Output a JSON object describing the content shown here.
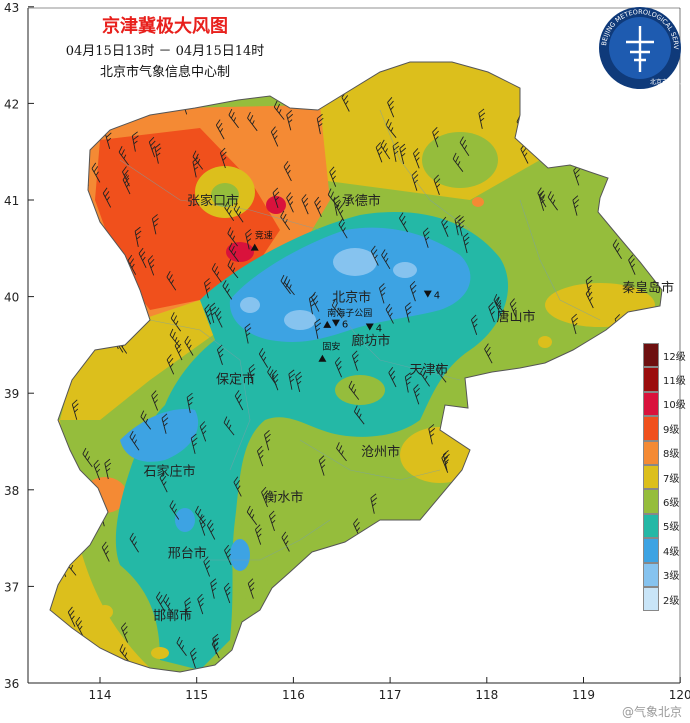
{
  "title": "京津冀极大风图",
  "time_range": "04月15日13时 － 04月15日14时",
  "producer": "北京市气象信息中心制",
  "logo": {
    "arc_text": "BEIJING METEOROLOGICAL SERVICE",
    "cn_text": "北京市气象局"
  },
  "axes": {
    "x_ticks": [
      "114",
      "115",
      "116",
      "117",
      "118",
      "119",
      "120"
    ],
    "y_ticks": [
      "43",
      "42",
      "41",
      "40",
      "39",
      "38",
      "37",
      "36"
    ]
  },
  "cities": [
    {
      "name": "承德市",
      "lon": 116.5,
      "lat": 40.95
    },
    {
      "name": "张家口市",
      "lon": 114.9,
      "lat": 40.95
    },
    {
      "name": "北京市",
      "lon": 116.4,
      "lat": 39.95
    },
    {
      "name": "秦皇岛市",
      "lon": 119.4,
      "lat": 40.05
    },
    {
      "name": "唐山市",
      "lon": 118.1,
      "lat": 39.75
    },
    {
      "name": "廊坊市",
      "lon": 116.6,
      "lat": 39.5
    },
    {
      "name": "天津市",
      "lon": 117.2,
      "lat": 39.2
    },
    {
      "name": "保定市",
      "lon": 115.2,
      "lat": 39.1
    },
    {
      "name": "沧州市",
      "lon": 116.7,
      "lat": 38.35
    },
    {
      "name": "石家庄市",
      "lon": 114.45,
      "lat": 38.15
    },
    {
      "name": "衡水市",
      "lon": 115.7,
      "lat": 37.88
    },
    {
      "name": "邢台市",
      "lon": 114.7,
      "lat": 37.3
    },
    {
      "name": "邯郸市",
      "lon": 114.55,
      "lat": 36.65
    }
  ],
  "station_labels": [
    {
      "name": "竞速",
      "lon": 115.6,
      "lat": 40.6
    },
    {
      "name": "南海子公园",
      "lon": 116.35,
      "lat": 39.8
    },
    {
      "name": "固安",
      "lon": 116.3,
      "lat": 39.45
    }
  ],
  "station_values": [
    {
      "text": "4",
      "lon": 117.4,
      "lat": 40.02
    },
    {
      "text": "4",
      "lon": 116.8,
      "lat": 39.68
    },
    {
      "text": "6",
      "lon": 116.45,
      "lat": 39.72
    }
  ],
  "legend": {
    "items": [
      {
        "label": "12级",
        "color": "#6e1010"
      },
      {
        "label": "11级",
        "color": "#9b0d0d"
      },
      {
        "label": "10级",
        "color": "#d9123c"
      },
      {
        "label": "9级",
        "color": "#f0501c"
      },
      {
        "label": "8级",
        "color": "#f48a34"
      },
      {
        "label": "7级",
        "color": "#dcbf1c"
      },
      {
        "label": "6级",
        "color": "#95bd3c"
      },
      {
        "label": "5级",
        "color": "#24b8a6"
      },
      {
        "label": "4级",
        "color": "#3da3e3"
      },
      {
        "label": "3级",
        "color": "#86c3ef"
      },
      {
        "label": "2级",
        "color": "#c9e5f8"
      }
    ]
  },
  "watermark": "@气象北京"
}
